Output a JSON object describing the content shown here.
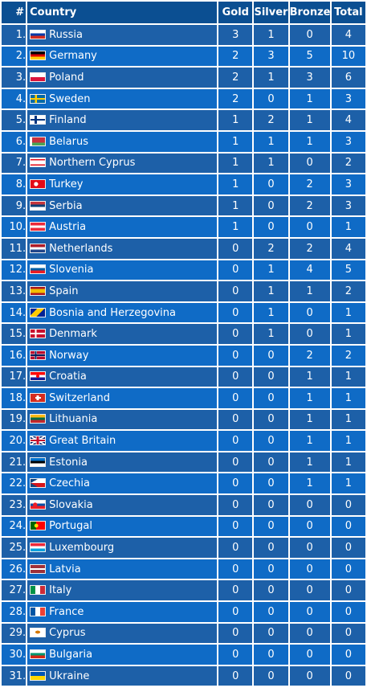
{
  "table": {
    "headers": {
      "rank": "#",
      "country": "Country",
      "gold": "Gold",
      "silver": "Silver",
      "bronze": "Bronze",
      "total": "Total"
    },
    "rows": [
      {
        "rank": "1.",
        "country": "Russia",
        "flag": "russia-flag-icon",
        "gold": "3",
        "silver": "1",
        "bronze": "0",
        "total": "4",
        "flag_bg": "linear-gradient(#ffffff 0 33%, #0039a6 33% 66%, #d52b1e 66%)"
      },
      {
        "rank": "2.",
        "country": "Germany",
        "flag": "germany-flag-icon",
        "gold": "2",
        "silver": "3",
        "bronze": "5",
        "total": "10",
        "flag_bg": "linear-gradient(#000000 0 33%, #dd0000 33% 66%, #ffce00 66%)"
      },
      {
        "rank": "3.",
        "country": "Poland",
        "flag": "poland-flag-icon",
        "gold": "2",
        "silver": "1",
        "bronze": "3",
        "total": "6",
        "flag_bg": "linear-gradient(#ffffff 0 50%, #dc143c 50%)"
      },
      {
        "rank": "4.",
        "country": "Sweden",
        "flag": "sweden-flag-icon",
        "gold": "2",
        "silver": "0",
        "bronze": "1",
        "total": "3",
        "flag_bg": "linear-gradient(90deg, transparent 0 30%, #fecc00 30% 45%, transparent 45%), linear-gradient(transparent 0 40%, #fecc00 40% 60%, transparent 60%), #006aa7"
      },
      {
        "rank": "5.",
        "country": "Finland",
        "flag": "finland-flag-icon",
        "gold": "1",
        "silver": "2",
        "bronze": "1",
        "total": "4",
        "flag_bg": "linear-gradient(90deg, transparent 0 28%, #003580 28% 45%, transparent 45%), linear-gradient(transparent 0 38%, #003580 38% 62%, transparent 62%), #ffffff"
      },
      {
        "rank": "6.",
        "country": "Belarus",
        "flag": "belarus-flag-icon",
        "gold": "1",
        "silver": "1",
        "bronze": "1",
        "total": "3",
        "flag_bg": "linear-gradient(90deg, #ffffff 0 12%, transparent 12%), linear-gradient(#c8313e 0 66%, #4aa657 66%)"
      },
      {
        "rank": "7.",
        "country": "Northern Cyprus",
        "flag": "northern-cyprus-flag-icon",
        "gold": "1",
        "silver": "1",
        "bronze": "0",
        "total": "2",
        "flag_bg": "linear-gradient(#ffffff 0 12%, #e30a17 12% 24%, #ffffff 24% 76%, #e30a17 76% 88%, #ffffff 88%)"
      },
      {
        "rank": "8.",
        "country": "Turkey",
        "flag": "turkey-flag-icon",
        "gold": "1",
        "silver": "0",
        "bronze": "2",
        "total": "3",
        "flag_bg": "radial-gradient(circle at 38% 50%, #ffffff 0 20%, transparent 22%), #e30a17"
      },
      {
        "rank": "9.",
        "country": "Serbia",
        "flag": "serbia-flag-icon",
        "gold": "1",
        "silver": "0",
        "bronze": "2",
        "total": "3",
        "flag_bg": "linear-gradient(#c6363c 0 33%, #0c4076 33% 66%, #ffffff 66%)"
      },
      {
        "rank": "10.",
        "country": "Austria",
        "flag": "austria-flag-icon",
        "gold": "1",
        "silver": "0",
        "bronze": "0",
        "total": "1",
        "flag_bg": "linear-gradient(#ed2939 0 33%, #ffffff 33% 66%, #ed2939 66%)"
      },
      {
        "rank": "11.",
        "country": "Netherlands",
        "flag": "netherlands-flag-icon",
        "gold": "0",
        "silver": "2",
        "bronze": "2",
        "total": "4",
        "flag_bg": "linear-gradient(#ae1c28 0 33%, #ffffff 33% 66%, #21468b 66%)"
      },
      {
        "rank": "12.",
        "country": "Slovenia",
        "flag": "slovenia-flag-icon",
        "gold": "0",
        "silver": "1",
        "bronze": "4",
        "total": "5",
        "flag_bg": "linear-gradient(#ffffff 0 33%, #005da4 33% 66%, #ed1c24 66%)"
      },
      {
        "rank": "13.",
        "country": "Spain",
        "flag": "spain-flag-icon",
        "gold": "0",
        "silver": "1",
        "bronze": "1",
        "total": "2",
        "flag_bg": "linear-gradient(#aa151b 0 25%, #f1bf00 25% 75%, #aa151b 75%)"
      },
      {
        "rank": "14.",
        "country": "Bosnia and Herzegovina",
        "flag": "bosnia-flag-icon",
        "gold": "0",
        "silver": "1",
        "bronze": "0",
        "total": "1",
        "flag_bg": "linear-gradient(135deg, #002395 0 30%, #fecb00 30% 62%, #002395 62%)"
      },
      {
        "rank": "15.",
        "country": "Denmark",
        "flag": "denmark-flag-icon",
        "gold": "0",
        "silver": "1",
        "bronze": "0",
        "total": "1",
        "flag_bg": "linear-gradient(90deg, transparent 0 30%, #ffffff 30% 42%, transparent 42%), linear-gradient(transparent 0 40%, #ffffff 40% 60%, transparent 60%), #c8102e"
      },
      {
        "rank": "16.",
        "country": "Norway",
        "flag": "norway-flag-icon",
        "gold": "0",
        "silver": "0",
        "bronze": "2",
        "total": "2",
        "flag_bg": "linear-gradient(90deg, transparent 0 31%, #00205b 31% 41%, transparent 41%), linear-gradient(transparent 0 42%, #00205b 42% 58%, transparent 58%), linear-gradient(90deg, transparent 0 27%, #ffffff 27% 45%, transparent 45%), linear-gradient(transparent 0 34%, #ffffff 34% 66%, transparent 66%), #ba0c2f"
      },
      {
        "rank": "17.",
        "country": "Croatia",
        "flag": "croatia-flag-icon",
        "gold": "0",
        "silver": "0",
        "bronze": "1",
        "total": "1",
        "flag_bg": "radial-gradient(circle at 50% 50%, #ff0000 0 18%, transparent 20%), linear-gradient(#ff0000 0 33%, #ffffff 33% 66%, #171796 66%)"
      },
      {
        "rank": "18.",
        "country": "Switzerland",
        "flag": "switzerland-flag-icon",
        "gold": "0",
        "silver": "0",
        "bronze": "1",
        "total": "1",
        "flag_bg": "linear-gradient(90deg, transparent 0 42%, #ffffff 42% 58%, transparent 58%) center/100% 60% no-repeat, linear-gradient(transparent 0 40%, #ffffff 40% 60%, transparent 60%) center/40% 100% no-repeat, #d52b1e"
      },
      {
        "rank": "19.",
        "country": "Lithuania",
        "flag": "lithuania-flag-icon",
        "gold": "0",
        "silver": "0",
        "bronze": "1",
        "total": "1",
        "flag_bg": "linear-gradient(#fdb913 0 33%, #006a44 33% 66%, #c1272d 66%)"
      },
      {
        "rank": "20.",
        "country": "Great Britain",
        "flag": "great-britain-flag-icon",
        "gold": "0",
        "silver": "0",
        "bronze": "1",
        "total": "1",
        "flag_bg": "linear-gradient(90deg, transparent 0 42%, #c8102e 42% 58%, transparent 58%), linear-gradient(transparent 0 38%, #c8102e 38% 62%, transparent 62%), linear-gradient(90deg, transparent 0 36%, #ffffff 36% 64%, transparent 64%), linear-gradient(transparent 0 30%, #ffffff 30% 70%, transparent 70%), linear-gradient(31deg, transparent 0 45%, #ffffff 45% 55%, transparent 55%), linear-gradient(-31deg, transparent 0 45%, #ffffff 45% 55%, transparent 55%), #012169"
      },
      {
        "rank": "21.",
        "country": "Estonia",
        "flag": "estonia-flag-icon",
        "gold": "0",
        "silver": "0",
        "bronze": "1",
        "total": "1",
        "flag_bg": "linear-gradient(#0072ce 0 33%, #000000 33% 66%, #ffffff 66%)"
      },
      {
        "rank": "22.",
        "country": "Czechia",
        "flag": "czechia-flag-icon",
        "gold": "0",
        "silver": "0",
        "bronze": "1",
        "total": "1",
        "flag_bg": "linear-gradient(to bottom right, #11457e 0 50%, transparent 50%) left top/50% 50% no-repeat, linear-gradient(to top right, #11457e 0 50%, transparent 50%) left bottom/50% 50% no-repeat, linear-gradient(#ffffff 0 50%, #d7141a 50%)"
      },
      {
        "rank": "23.",
        "country": "Slovakia",
        "flag": "slovakia-flag-icon",
        "gold": "0",
        "silver": "0",
        "bronze": "0",
        "total": "0",
        "flag_bg": "radial-gradient(circle at 32% 50%, #ee1c25 0 18%, transparent 22%), linear-gradient(#ffffff 0 33%, #0b4ea2 33% 66%, #ee1c25 66%)"
      },
      {
        "rank": "24.",
        "country": "Portugal",
        "flag": "portugal-flag-icon",
        "gold": "0",
        "silver": "0",
        "bronze": "0",
        "total": "0",
        "flag_bg": "radial-gradient(circle at 40% 50%, #ffe000 0 18%, transparent 22%), linear-gradient(90deg, #006600 0 40%, #ff0000 40%)"
      },
      {
        "rank": "25.",
        "country": "Luxembourg",
        "flag": "luxembourg-flag-icon",
        "gold": "0",
        "silver": "0",
        "bronze": "0",
        "total": "0",
        "flag_bg": "linear-gradient(#ed2939 0 33%, #ffffff 33% 66%, #00a1de 66%)"
      },
      {
        "rank": "26.",
        "country": "Latvia",
        "flag": "latvia-flag-icon",
        "gold": "0",
        "silver": "0",
        "bronze": "0",
        "total": "0",
        "flag_bg": "linear-gradient(#9e3039 0 40%, #ffffff 40% 60%, #9e3039 60%)"
      },
      {
        "rank": "27.",
        "country": "Italy",
        "flag": "italy-flag-icon",
        "gold": "0",
        "silver": "0",
        "bronze": "0",
        "total": "0",
        "flag_bg": "linear-gradient(90deg, #009246 0 33%, #ffffff 33% 66%, #ce2b37 66%)"
      },
      {
        "rank": "28.",
        "country": "France",
        "flag": "france-flag-icon",
        "gold": "0",
        "silver": "0",
        "bronze": "0",
        "total": "0",
        "flag_bg": "linear-gradient(90deg, #0055a4 0 33%, #ffffff 33% 66%, #ef4135 66%)"
      },
      {
        "rank": "29.",
        "country": "Cyprus",
        "flag": "cyprus-flag-icon",
        "gold": "0",
        "silver": "0",
        "bronze": "0",
        "total": "0",
        "flag_bg": "radial-gradient(ellipse at 50% 45%, #d57800 0 22%, transparent 26%), #ffffff"
      },
      {
        "rank": "30.",
        "country": "Bulgaria",
        "flag": "bulgaria-flag-icon",
        "gold": "0",
        "silver": "0",
        "bronze": "0",
        "total": "0",
        "flag_bg": "linear-gradient(#ffffff 0 33%, #00966e 33% 66%, #d62612 66%)"
      },
      {
        "rank": "31.",
        "country": "Ukraine",
        "flag": "ukraine-flag-icon",
        "gold": "0",
        "silver": "0",
        "bronze": "0",
        "total": "0",
        "flag_bg": "linear-gradient(#0057b7 0 50%, #ffd700 50%)"
      }
    ]
  },
  "colors": {
    "header_bg": "#0b4f92",
    "row_odd_bg": "#1d60a8",
    "row_even_bg": "#0f6bc6",
    "text": "#ffffff"
  }
}
